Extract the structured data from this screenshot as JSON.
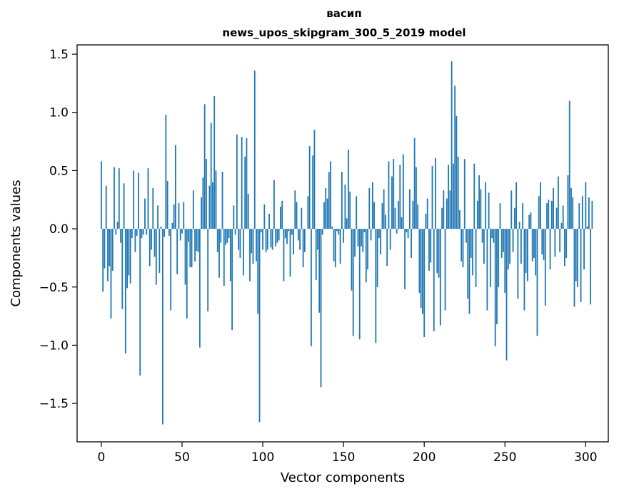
{
  "chart_data": {
    "type": "bar",
    "title_lines": [
      "васип",
      "news_upos_skipgram_300_5_2019 model"
    ],
    "xlabel": "Vector components",
    "ylabel": "Components values",
    "xlim": [
      -15,
      314
    ],
    "ylim": [
      -1.83,
      1.58
    ],
    "xticks": [
      0,
      50,
      100,
      150,
      200,
      250,
      300
    ],
    "yticks": [
      -1.5,
      -1.0,
      -0.5,
      0.0,
      0.5,
      1.0,
      1.5
    ],
    "ytick_labels": [
      "−1.5",
      "−1.0",
      "−0.5",
      "0.0",
      "0.5",
      "1.0",
      "1.5"
    ],
    "bar_color": "#1f77b4",
    "grid": false,
    "values": [
      0.58,
      -0.54,
      -0.34,
      0.37,
      -0.45,
      -0.32,
      -0.77,
      -0.36,
      0.53,
      -0.05,
      0.06,
      0.52,
      -0.12,
      -0.69,
      0.39,
      -1.07,
      -0.51,
      -0.4,
      -0.47,
      -0.08,
      0.5,
      -0.2,
      -0.06,
      0.48,
      -1.26,
      -0.08,
      -0.05,
      0.26,
      -0.05,
      0.52,
      -0.32,
      -0.18,
      0.35,
      -0.24,
      -0.48,
      0.2,
      -0.38,
      0.02,
      -1.68,
      -0.07,
      0.98,
      0.41,
      -0.06,
      -0.7,
      0.05,
      0.21,
      0.72,
      -0.39,
      0.22,
      -0.1,
      -0.04,
      0.23,
      -0.48,
      -0.77,
      -0.11,
      -0.33,
      -0.33,
      0.33,
      -0.28,
      -0.19,
      -0.2,
      -1.02,
      0.27,
      0.44,
      1.07,
      0.6,
      -0.71,
      0.37,
      0.91,
      0.4,
      1.14,
      0.5,
      -0.2,
      -0.42,
      -0.12,
      0.49,
      -0.49,
      -0.14,
      -0.12,
      -0.08,
      -0.45,
      -0.87,
      0.2,
      -0.05,
      0.81,
      -0.18,
      -0.25,
      0.79,
      -0.4,
      0.62,
      0.78,
      0.3,
      -0.45,
      -0.21,
      -0.3,
      1.36,
      -0.28,
      -0.73,
      -1.66,
      -0.03,
      -0.18,
      0.21,
      -0.2,
      -0.18,
      0.13,
      -0.16,
      -0.18,
      0.42,
      -0.15,
      -0.12,
      -0.1,
      0.19,
      0.24,
      -0.45,
      -0.08,
      -0.13,
      -0.02,
      -0.41,
      -0.05,
      -0.22,
      0.33,
      0.23,
      -0.1,
      -0.18,
      0.18,
      -0.33,
      -0.2,
      0.0,
      0.28,
      0.71,
      -1.01,
      0.63,
      0.85,
      -0.44,
      -0.18,
      -0.72,
      -1.36,
      -0.05,
      0.23,
      0.35,
      0.26,
      0.49,
      0.58,
      0.02,
      -0.28,
      -0.33,
      -0.02,
      -0.05,
      -0.3,
      0.49,
      -0.12,
      0.38,
      0.09,
      0.68,
      0.32,
      -0.53,
      -0.92,
      -0.24,
      0.28,
      -0.15,
      -0.95,
      -0.15,
      -0.2,
      -0.03,
      -0.46,
      -0.35,
      0.35,
      -0.1,
      0.4,
      0.23,
      -0.98,
      -0.5,
      -0.08,
      -0.22,
      0.22,
      0.34,
      0.12,
      -0.32,
      0.58,
      -0.18,
      0.45,
      0.6,
      0.18,
      -0.04,
      0.24,
      0.55,
      0.1,
      0.64,
      -0.52,
      -0.03,
      -0.08,
      0.34,
      -0.25,
      0.24,
      0.78,
      0.53,
      0.21,
      -0.55,
      -0.68,
      -0.73,
      -0.93,
      0.13,
      0.26,
      -0.36,
      -0.29,
      0.54,
      -0.88,
      0.61,
      -0.38,
      -0.42,
      -0.83,
      0.18,
      0.33,
      -0.7,
      0.26,
      0.55,
      0.33,
      1.44,
      0.56,
      1.23,
      0.97,
      0.62,
      0.16,
      -0.28,
      -0.33,
      0.6,
      -0.12,
      -0.6,
      -0.73,
      -0.25,
      -0.4,
      0.56,
      -0.5,
      0.24,
      0.46,
      0.34,
      -0.12,
      -0.3,
      0.4,
      -0.7,
      0.31,
      -0.5,
      -0.08,
      -0.12,
      -1.01,
      -0.82,
      -0.5,
      0.22,
      -0.25,
      -0.2,
      -0.55,
      -1.13,
      -0.35,
      -0.3,
      0.33,
      -0.2,
      0.18,
      0.4,
      -0.6,
      0.06,
      -0.3,
      0.22,
      -0.7,
      -0.38,
      -0.45,
      0.12,
      0.14,
      -0.28,
      -0.25,
      -0.4,
      -0.92,
      0.28,
      0.4,
      -0.22,
      -0.27,
      -0.66,
      0.22,
      0.25,
      -0.35,
      0.24,
      0.35,
      -0.24,
      0.18,
      0.45,
      -0.2,
      0.05,
      0.2,
      -0.32,
      -0.25,
      0.46,
      1.1,
      0.35,
      0.27,
      -0.67,
      -0.45,
      -0.5,
      0.22,
      -0.63,
      0.28,
      -0.35,
      0.4,
      0.02,
      0.27,
      -0.65,
      0.24
    ]
  }
}
